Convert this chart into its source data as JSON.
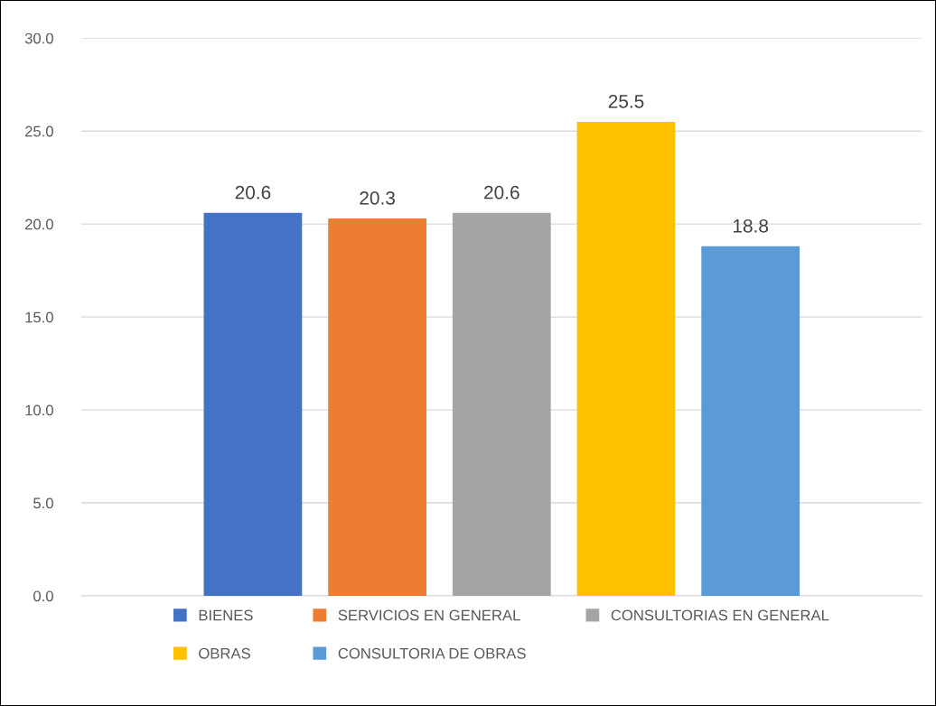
{
  "chart_data": {
    "type": "bar",
    "categories": [
      null
    ],
    "series": [
      {
        "name": "BIENES",
        "color": "#4472c4",
        "values": [
          20.6
        ]
      },
      {
        "name": "SERVICIOS EN GENERAL",
        "color": "#ed7d31",
        "values": [
          20.3
        ]
      },
      {
        "name": "CONSULTORIAS EN GENERAL",
        "color": "#a5a5a5",
        "values": [
          20.6
        ]
      },
      {
        "name": "OBRAS",
        "color": "#ffc000",
        "values": [
          25.5
        ]
      },
      {
        "name": "CONSULTORIA DE OBRAS",
        "color": "#5b9bd5",
        "values": [
          18.8
        ]
      }
    ],
    "ylim": [
      0,
      30
    ],
    "yticks": [
      {
        "value": 0,
        "label": "0.0"
      },
      {
        "value": 5,
        "label": "5.0"
      },
      {
        "value": 10,
        "label": "10.0"
      },
      {
        "value": 15,
        "label": "15.0"
      },
      {
        "value": 20,
        "label": "20.0"
      },
      {
        "value": 25,
        "label": "25.0"
      },
      {
        "value": 30,
        "label": "30.0"
      }
    ],
    "grid": "y",
    "legend": "bottom",
    "data_labels": true
  }
}
